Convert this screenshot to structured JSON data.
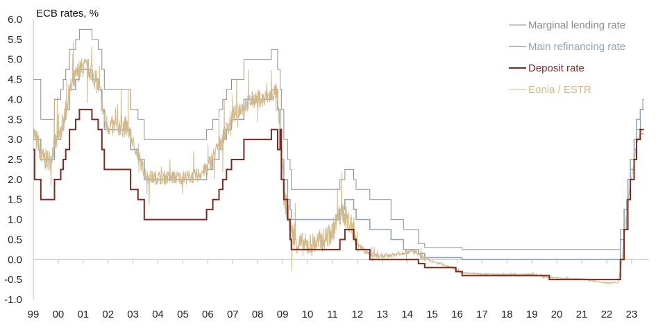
{
  "chart_data": {
    "type": "line",
    "title": "ECB rates, %",
    "xlabel": "",
    "ylabel": "",
    "ylim": [
      -1.0,
      6.0
    ],
    "xlim": [
      1999.0,
      2023.7
    ],
    "yticks": [
      "6.0",
      "5.5",
      "5.0",
      "4.5",
      "4.0",
      "3.5",
      "3.0",
      "2.5",
      "2.0",
      "1.5",
      "1.0",
      "0.5",
      "0.0",
      "-0.5",
      "-1.0"
    ],
    "xticks": [
      "99",
      "00",
      "01",
      "02",
      "03",
      "04",
      "05",
      "06",
      "07",
      "08",
      "09",
      "10",
      "11",
      "12",
      "13",
      "14",
      "15",
      "16",
      "17",
      "18",
      "19",
      "20",
      "21",
      "22",
      "23"
    ],
    "grid": false,
    "legend_position": "top-right",
    "series": [
      {
        "name": "Marginal lending rate",
        "color": "#8c8c8c",
        "step": true,
        "points": [
          [
            1999.0,
            4.5
          ],
          [
            1999.3,
            3.5
          ],
          [
            1999.85,
            4.0
          ],
          [
            2000.1,
            4.25
          ],
          [
            2000.2,
            4.5
          ],
          [
            2000.3,
            4.75
          ],
          [
            2000.45,
            5.25
          ],
          [
            2000.7,
            5.5
          ],
          [
            2000.85,
            5.75
          ],
          [
            2001.35,
            5.5
          ],
          [
            2001.6,
            5.25
          ],
          [
            2001.75,
            4.75
          ],
          [
            2001.85,
            4.25
          ],
          [
            2002.9,
            3.75
          ],
          [
            2003.2,
            3.5
          ],
          [
            2003.45,
            3.0
          ],
          [
            2005.95,
            3.25
          ],
          [
            2006.2,
            3.5
          ],
          [
            2006.45,
            3.75
          ],
          [
            2006.6,
            4.0
          ],
          [
            2006.75,
            4.25
          ],
          [
            2006.95,
            4.5
          ],
          [
            2007.45,
            5.0
          ],
          [
            2008.55,
            5.25
          ],
          [
            2008.8,
            4.75
          ],
          [
            2008.9,
            4.25
          ],
          [
            2008.95,
            3.75
          ],
          [
            2009.05,
            3.0
          ],
          [
            2009.2,
            2.5
          ],
          [
            2009.3,
            2.25
          ],
          [
            2009.35,
            1.75
          ],
          [
            2011.3,
            2.0
          ],
          [
            2011.5,
            2.25
          ],
          [
            2011.85,
            2.0
          ],
          [
            2011.95,
            1.75
          ],
          [
            2012.5,
            1.5
          ],
          [
            2013.35,
            1.0
          ],
          [
            2013.85,
            0.75
          ],
          [
            2014.45,
            0.4
          ],
          [
            2014.7,
            0.3
          ],
          [
            2016.2,
            0.25
          ],
          [
            2022.55,
            0.75
          ],
          [
            2022.8,
            1.5
          ],
          [
            2022.95,
            2.25
          ],
          [
            2023.1,
            2.75
          ],
          [
            2023.2,
            3.25
          ],
          [
            2023.35,
            3.75
          ],
          [
            2023.45,
            4.0
          ],
          [
            2023.5,
            4.0
          ]
        ]
      },
      {
        "name": "Main refinancing rate",
        "color": "#8fa4bd",
        "step": true,
        "points": [
          [
            1999.0,
            3.0
          ],
          [
            1999.3,
            2.5
          ],
          [
            1999.85,
            3.0
          ],
          [
            2000.1,
            3.25
          ],
          [
            2000.2,
            3.5
          ],
          [
            2000.3,
            3.75
          ],
          [
            2000.45,
            4.25
          ],
          [
            2000.7,
            4.5
          ],
          [
            2000.85,
            4.75
          ],
          [
            2001.35,
            4.5
          ],
          [
            2001.6,
            4.25
          ],
          [
            2001.75,
            3.75
          ],
          [
            2001.85,
            3.25
          ],
          [
            2002.9,
            2.75
          ],
          [
            2003.2,
            2.5
          ],
          [
            2003.45,
            2.0
          ],
          [
            2005.95,
            2.25
          ],
          [
            2006.2,
            2.5
          ],
          [
            2006.45,
            2.75
          ],
          [
            2006.6,
            3.0
          ],
          [
            2006.75,
            3.25
          ],
          [
            2006.95,
            3.5
          ],
          [
            2007.45,
            4.0
          ],
          [
            2008.55,
            4.25
          ],
          [
            2008.8,
            3.75
          ],
          [
            2008.9,
            3.25
          ],
          [
            2008.95,
            2.5
          ],
          [
            2009.05,
            2.0
          ],
          [
            2009.2,
            1.5
          ],
          [
            2009.3,
            1.25
          ],
          [
            2009.35,
            1.0
          ],
          [
            2011.3,
            1.25
          ],
          [
            2011.5,
            1.5
          ],
          [
            2011.85,
            1.25
          ],
          [
            2011.95,
            1.0
          ],
          [
            2012.5,
            0.75
          ],
          [
            2013.35,
            0.5
          ],
          [
            2013.85,
            0.25
          ],
          [
            2014.45,
            0.15
          ],
          [
            2014.7,
            0.05
          ],
          [
            2016.2,
            0.0
          ],
          [
            2022.55,
            0.5
          ],
          [
            2022.7,
            1.25
          ],
          [
            2022.85,
            2.0
          ],
          [
            2022.95,
            2.5
          ],
          [
            2023.1,
            3.0
          ],
          [
            2023.2,
            3.5
          ],
          [
            2023.35,
            3.75
          ],
          [
            2023.5,
            3.75
          ]
        ]
      },
      {
        "name": "Deposit rate",
        "color": "#7a2a21",
        "step": true,
        "points": [
          [
            1999.0,
            2.75
          ],
          [
            1999.05,
            2.0
          ],
          [
            1999.3,
            1.5
          ],
          [
            1999.85,
            2.0
          ],
          [
            2000.1,
            2.25
          ],
          [
            2000.2,
            2.5
          ],
          [
            2000.3,
            2.75
          ],
          [
            2000.45,
            3.25
          ],
          [
            2000.7,
            3.5
          ],
          [
            2000.85,
            3.75
          ],
          [
            2001.35,
            3.5
          ],
          [
            2001.6,
            3.25
          ],
          [
            2001.75,
            2.75
          ],
          [
            2001.85,
            2.25
          ],
          [
            2002.9,
            1.75
          ],
          [
            2003.2,
            1.5
          ],
          [
            2003.45,
            1.0
          ],
          [
            2005.95,
            1.25
          ],
          [
            2006.2,
            1.5
          ],
          [
            2006.45,
            1.75
          ],
          [
            2006.6,
            2.0
          ],
          [
            2006.75,
            2.25
          ],
          [
            2006.95,
            2.5
          ],
          [
            2007.45,
            3.0
          ],
          [
            2008.55,
            3.25
          ],
          [
            2008.8,
            2.75
          ],
          [
            2008.9,
            3.25
          ],
          [
            2008.95,
            2.0
          ],
          [
            2009.05,
            1.5
          ],
          [
            2009.2,
            1.0
          ],
          [
            2009.3,
            0.5
          ],
          [
            2009.35,
            0.25
          ],
          [
            2011.3,
            0.5
          ],
          [
            2011.5,
            0.75
          ],
          [
            2011.85,
            0.5
          ],
          [
            2011.95,
            0.25
          ],
          [
            2012.5,
            0.0
          ],
          [
            2014.45,
            -0.1
          ],
          [
            2014.7,
            -0.2
          ],
          [
            2015.95,
            -0.3
          ],
          [
            2016.2,
            -0.4
          ],
          [
            2019.7,
            -0.5
          ],
          [
            2022.55,
            0.0
          ],
          [
            2022.7,
            0.75
          ],
          [
            2022.85,
            1.5
          ],
          [
            2022.95,
            2.0
          ],
          [
            2023.1,
            2.5
          ],
          [
            2023.2,
            3.0
          ],
          [
            2023.35,
            3.25
          ],
          [
            2023.5,
            3.25
          ]
        ]
      },
      {
        "name": "Eonia / ESTR",
        "color": "#d2b98a",
        "step": false,
        "points": [
          [
            1999.0,
            3.2
          ],
          [
            1999.1,
            3.0
          ],
          [
            1999.2,
            2.9
          ],
          [
            1999.3,
            2.55
          ],
          [
            1999.5,
            2.5
          ],
          [
            1999.7,
            2.5
          ],
          [
            1999.85,
            2.9
          ],
          [
            2000.0,
            3.0
          ],
          [
            2000.15,
            3.3
          ],
          [
            2000.3,
            3.7
          ],
          [
            2000.45,
            4.2
          ],
          [
            2000.6,
            4.4
          ],
          [
            2000.8,
            4.7
          ],
          [
            2001.0,
            4.8
          ],
          [
            2001.2,
            4.75
          ],
          [
            2001.35,
            4.7
          ],
          [
            2001.5,
            4.5
          ],
          [
            2001.65,
            4.25
          ],
          [
            2001.75,
            3.9
          ],
          [
            2001.9,
            3.4
          ],
          [
            2002.2,
            3.3
          ],
          [
            2002.5,
            3.35
          ],
          [
            2002.8,
            3.3
          ],
          [
            2002.95,
            3.0
          ],
          [
            2003.2,
            2.6
          ],
          [
            2003.45,
            2.2
          ],
          [
            2003.6,
            2.05
          ],
          [
            2004.0,
            2.05
          ],
          [
            2004.5,
            2.05
          ],
          [
            2005.0,
            2.05
          ],
          [
            2005.5,
            2.08
          ],
          [
            2005.95,
            2.25
          ],
          [
            2006.2,
            2.55
          ],
          [
            2006.45,
            2.85
          ],
          [
            2006.6,
            3.05
          ],
          [
            2006.8,
            3.3
          ],
          [
            2007.0,
            3.6
          ],
          [
            2007.45,
            3.85
          ],
          [
            2007.8,
            4.0
          ],
          [
            2008.2,
            4.0
          ],
          [
            2008.5,
            4.1
          ],
          [
            2008.75,
            4.2
          ],
          [
            2008.85,
            3.6
          ],
          [
            2008.95,
            2.8
          ],
          [
            2009.05,
            1.6
          ],
          [
            2009.2,
            1.2
          ],
          [
            2009.35,
            0.7
          ],
          [
            2009.6,
            0.4
          ],
          [
            2010.0,
            0.35
          ],
          [
            2010.5,
            0.45
          ],
          [
            2010.8,
            0.55
          ],
          [
            2011.0,
            0.7
          ],
          [
            2011.2,
            1.0
          ],
          [
            2011.4,
            1.2
          ],
          [
            2011.6,
            1.0
          ],
          [
            2011.85,
            0.8
          ],
          [
            2012.0,
            0.4
          ],
          [
            2012.5,
            0.12
          ],
          [
            2013.0,
            0.08
          ],
          [
            2013.5,
            0.12
          ],
          [
            2014.0,
            0.2
          ],
          [
            2014.3,
            0.2
          ],
          [
            2014.6,
            0.05
          ],
          [
            2014.9,
            -0.03
          ],
          [
            2015.3,
            -0.1
          ],
          [
            2015.8,
            -0.2
          ],
          [
            2016.2,
            -0.33
          ],
          [
            2017.0,
            -0.36
          ],
          [
            2018.0,
            -0.37
          ],
          [
            2019.0,
            -0.37
          ],
          [
            2019.7,
            -0.45
          ],
          [
            2020.0,
            -0.46
          ],
          [
            2021.0,
            -0.48
          ],
          [
            2021.8,
            -0.57
          ],
          [
            2022.0,
            -0.58
          ],
          [
            2022.45,
            -0.58
          ],
          [
            2022.6,
            -0.1
          ],
          [
            2022.7,
            0.65
          ],
          [
            2022.85,
            1.4
          ],
          [
            2022.95,
            1.9
          ],
          [
            2023.1,
            2.4
          ],
          [
            2023.2,
            2.9
          ],
          [
            2023.35,
            3.15
          ],
          [
            2023.5,
            3.15
          ]
        ]
      }
    ]
  }
}
